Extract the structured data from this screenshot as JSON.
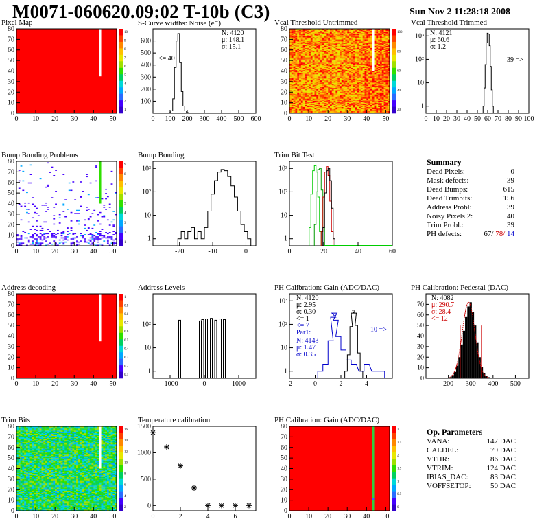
{
  "header": {
    "title": "M0071-060620.09:02 T-10b (C3)",
    "date": "Sun Nov  2 11:28:18 2008"
  },
  "panels": {
    "pixel_map": "Pixel Map",
    "scurve": "S-Curve widths: Noise (e⁻)",
    "vcal_untrimmed": "Vcal Threshold Untrimmed",
    "vcal_trimmed": "Vcal Threshold Trimmed",
    "bump_problems": "Bump Bonding Problems",
    "bump_bonding": "Bump Bonding",
    "trim_bit_test": "Trim Bit Test",
    "address_decoding": "Address decoding",
    "address_levels": "Address Levels",
    "ph_gain": "PH Calibration: Gain (ADC/DAC)",
    "ph_pedestal": "PH Calibration: Pedestal (DAC)",
    "trim_bits": "Trim Bits",
    "temperature": "Temperature calibration",
    "ph_gain_map": "PH Calibration: Gain (ADC/DAC)"
  },
  "colors": {
    "red": "#ff0000",
    "blue_stats": "#0000cc",
    "green_curve": "#00cc00",
    "red_curve": "#cc0000"
  },
  "chart_data": [
    {
      "id": "pixel_map",
      "type": "heatmap",
      "title": "Pixel Map",
      "xlim": [
        0,
        52
      ],
      "ylim": [
        0,
        80
      ],
      "xticks": [
        "0",
        "10",
        "20",
        "30",
        "40",
        "50"
      ],
      "yticks": [
        "0",
        "10",
        "20",
        "30",
        "40",
        "50",
        "60",
        "70",
        "80"
      ],
      "palette_ticks": [
        "10",
        "9",
        "8",
        "7",
        "6",
        "5",
        "4",
        "3",
        "2",
        "1"
      ],
      "fill": "#ff0000",
      "dead_column": {
        "x": 43,
        "y_from": 35,
        "y_to": 80
      }
    },
    {
      "id": "scurve",
      "type": "bar",
      "title": "S-Curve widths: Noise (e⁻)",
      "xlim": [
        0,
        600
      ],
      "ylim": [
        0,
        700
      ],
      "xticks": [
        "0",
        "100",
        "200",
        "300",
        "400",
        "500",
        "600"
      ],
      "yticks": [
        "100",
        "200",
        "300",
        "400",
        "500",
        "600"
      ],
      "stats": {
        "n": "N: 4120",
        "mean": "μ: 148.1",
        "sigma": "σ: 15.1"
      },
      "underflow": "<= 40",
      "x": [
        100,
        110,
        120,
        130,
        140,
        150,
        160,
        170,
        180,
        190,
        200,
        210
      ],
      "values": [
        5,
        20,
        120,
        380,
        600,
        660,
        420,
        180,
        60,
        20,
        6,
        2
      ]
    },
    {
      "id": "vcal_untrimmed",
      "type": "heatmap",
      "title": "Vcal Threshold Untrimmed",
      "xlim": [
        0,
        52
      ],
      "ylim": [
        0,
        80
      ],
      "xticks": [
        "0",
        "10",
        "20",
        "30",
        "40",
        "50"
      ],
      "yticks": [
        "0",
        "10",
        "20",
        "30",
        "40",
        "50",
        "60",
        "70",
        "80"
      ],
      "palette_ticks": [
        "100",
        "80",
        "60",
        "40",
        "20"
      ],
      "dead_column": {
        "x": 43,
        "y_from": 40,
        "y_to": 80
      }
    },
    {
      "id": "vcal_trimmed",
      "type": "bar",
      "title": "Vcal Threshold Trimmed",
      "xlim": [
        0,
        100
      ],
      "ylim": [
        0.5,
        2000
      ],
      "yscale": "log",
      "xticks": [
        "0",
        "10",
        "20",
        "30",
        "40",
        "50",
        "60",
        "70",
        "80",
        "90",
        "100"
      ],
      "yticks": [
        "1",
        "10",
        "10²",
        "10³"
      ],
      "stats": {
        "n": "N: 4121",
        "mean": "μ: 60.6",
        "sigma": "σ:  1.2"
      },
      "overflow": "39 =>",
      "x": [
        56,
        57,
        58,
        59,
        60,
        61,
        62,
        63,
        64,
        65
      ],
      "values": [
        1,
        6,
        60,
        500,
        1300,
        1200,
        380,
        50,
        5,
        1
      ]
    },
    {
      "id": "bump_problems",
      "type": "heatmap",
      "title": "Bump Bonding Problems",
      "xlim": [
        0,
        52
      ],
      "ylim": [
        0,
        80
      ],
      "xticks": [
        "0",
        "10",
        "20",
        "30",
        "40",
        "50"
      ],
      "yticks": [
        "0",
        "10",
        "20",
        "30",
        "40",
        "50",
        "60",
        "70",
        "80"
      ],
      "palette_ticks": [
        "9",
        "8",
        "7",
        "6",
        "5",
        "4",
        "3",
        "2",
        "1"
      ],
      "dead_column": {
        "x": 43,
        "y_from": 40,
        "y_to": 80
      }
    },
    {
      "id": "bump_bonding",
      "type": "bar",
      "title": "Bump Bonding",
      "xlim": [
        -28,
        3
      ],
      "ylim": [
        0.5,
        2000
      ],
      "yscale": "log",
      "xticks": [
        "-20",
        "-10",
        "0"
      ],
      "yticks": [
        "1",
        "10",
        "10²",
        "10³"
      ],
      "x": [
        -20,
        -19,
        -18,
        -17,
        -16,
        -15,
        -14,
        -13,
        -12,
        -11,
        -10,
        -9,
        -8,
        -7,
        -6,
        -5,
        -4,
        -3,
        -2,
        -1,
        0,
        1
      ],
      "values": [
        1,
        2,
        1,
        2,
        3,
        1,
        2,
        1,
        3,
        15,
        80,
        300,
        700,
        900,
        800,
        450,
        180,
        60,
        15,
        4,
        2,
        1
      ]
    },
    {
      "id": "trim_bit_test",
      "type": "line",
      "title": "Trim Bit Test",
      "xlim": [
        0,
        60
      ],
      "ylim": [
        0.5,
        2000
      ],
      "yscale": "log",
      "xticks": [
        "0",
        "20",
        "40",
        "60"
      ],
      "yticks": [
        "1",
        "10",
        "10²",
        "10³"
      ],
      "series": [
        {
          "x": [
            12,
            13,
            14,
            15,
            16,
            17,
            18
          ],
          "values": [
            3,
            80,
            800,
            1300,
            700,
            60,
            2
          ],
          "color": "#00cc00"
        },
        {
          "x": [
            15,
            16,
            17,
            18,
            19,
            20
          ],
          "values": [
            4,
            100,
            900,
            1000,
            120,
            3
          ],
          "color": "#009900"
        },
        {
          "x": [
            19,
            20,
            21,
            22,
            23,
            24,
            25
          ],
          "values": [
            2,
            60,
            700,
            1200,
            500,
            40,
            2
          ],
          "color": "#cc0000"
        },
        {
          "x": [
            20,
            21,
            22,
            23,
            24,
            25,
            26
          ],
          "values": [
            3,
            90,
            800,
            1000,
            300,
            20,
            1
          ],
          "color": "#000000"
        }
      ]
    },
    {
      "id": "address_decoding",
      "type": "heatmap",
      "title": "Address decoding",
      "xlim": [
        0,
        52
      ],
      "ylim": [
        0,
        80
      ],
      "xticks": [
        "0",
        "10",
        "20",
        "30",
        "40",
        "50"
      ],
      "yticks": [
        "0",
        "10",
        "20",
        "30",
        "40",
        "50",
        "60",
        "70",
        "80"
      ],
      "palette_ticks": [
        "1",
        "0.9",
        "0.8",
        "0.7",
        "0.6",
        "0.5",
        "0.4",
        "0.3",
        "0.2",
        "0.1"
      ],
      "dead_column": {
        "x": 43,
        "y_from": 35,
        "y_to": 80
      }
    },
    {
      "id": "address_levels",
      "type": "bar",
      "title": "Address Levels",
      "xlim": [
        -1500,
        1500
      ],
      "ylim": [
        0.5,
        2000
      ],
      "yscale": "log",
      "xticks": [
        "-1000",
        "0",
        "1000"
      ],
      "yticks": [
        "1",
        "10",
        "10²"
      ],
      "x": [
        -720,
        -120,
        -50,
        60,
        200,
        330,
        460,
        580
      ],
      "values": [
        150,
        140,
        160,
        170,
        180,
        150,
        170,
        160
      ]
    },
    {
      "id": "ph_gain",
      "type": "line",
      "title": "PH Calibration: Gain (ADC/DAC)",
      "xlim": [
        -2,
        6
      ],
      "ylim": [
        0.5,
        2000
      ],
      "yscale": "log",
      "xticks": [
        "-2",
        "0",
        "2",
        "4"
      ],
      "yticks": [
        "1",
        "10",
        "10²",
        "10³"
      ],
      "stats": {
        "n": "N: 4120",
        "mean": "μ: 2.95",
        "sigma": "σ: 0.30"
      },
      "underflow": "<= 1",
      "overflow_blue": "10 =>",
      "underflow_blue": "<= 7",
      "blue_stats": {
        "label": "Par1:",
        "n": "N: 4143",
        "mean": "μ: 1.47",
        "sigma": "σ: 0.35"
      },
      "series": [
        {
          "name": "",
          "x": [
            2.4,
            2.6,
            2.8,
            2.9,
            3.0,
            3.1,
            3.2,
            3.4,
            3.6
          ],
          "values": [
            1,
            5,
            80,
            300,
            400,
            300,
            90,
            6,
            1
          ],
          "color": "#000000"
        },
        {
          "name": "",
          "x": [
            0.4,
            0.8,
            1.2,
            1.4,
            1.5,
            1.6,
            1.8,
            2.2,
            2.6,
            3.0,
            3.6,
            4.0,
            4.6,
            5.2
          ],
          "values": [
            1,
            2,
            20,
            200,
            300,
            150,
            30,
            8,
            3,
            2,
            1,
            2,
            1,
            1
          ],
          "color": "#0000cc"
        }
      ]
    },
    {
      "id": "ph_pedestal",
      "type": "bar",
      "title": "PH Calibration: Pedestal (DAC)",
      "xlim": [
        100,
        560
      ],
      "ylim": [
        0,
        80
      ],
      "xticks": [
        "200",
        "300",
        "400",
        "500"
      ],
      "yticks": [
        "0",
        "10",
        "20",
        "30",
        "40",
        "50",
        "60",
        "70"
      ],
      "stats": {
        "n": "N: 4082"
      },
      "red_stats": {
        "mean": "μ: 290.7",
        "sigma": "σ: 28.4",
        "underflow": "<= 12"
      },
      "x": [
        210,
        220,
        230,
        240,
        250,
        260,
        270,
        280,
        290,
        300,
        310,
        320,
        330,
        340,
        350,
        360,
        370,
        380
      ],
      "values": [
        1,
        3,
        6,
        12,
        20,
        32,
        45,
        58,
        68,
        72,
        63,
        50,
        34,
        20,
        11,
        5,
        2,
        1
      ]
    },
    {
      "id": "trim_bits",
      "type": "heatmap",
      "title": "Trim Bits",
      "xlim": [
        0,
        52
      ],
      "ylim": [
        0,
        80
      ],
      "xticks": [
        "0",
        "10",
        "20",
        "30",
        "40",
        "50"
      ],
      "yticks": [
        "0",
        "10",
        "20",
        "30",
        "40",
        "50",
        "60",
        "70",
        "80"
      ],
      "palette_ticks": [
        "16",
        "14",
        "12",
        "10",
        "8",
        "6",
        "4",
        "2"
      ],
      "dead_column": {
        "x": 43,
        "y_from": 40,
        "y_to": 80
      }
    },
    {
      "id": "temperature",
      "type": "scatter",
      "title": "Temperature calibration",
      "xlim": [
        0,
        7.5
      ],
      "ylim": [
        -100,
        1500
      ],
      "xticks": [
        "0",
        "2",
        "4",
        "6"
      ],
      "yticks": [
        "0",
        "500",
        "1000",
        "1500"
      ],
      "x": [
        0,
        1,
        2,
        3,
        4,
        5,
        6,
        7
      ],
      "values": [
        1380,
        1110,
        750,
        330,
        0,
        0,
        0,
        0
      ]
    },
    {
      "id": "ph_gain_map",
      "type": "heatmap",
      "title": "PH Calibration: Gain (ADC/DAC)",
      "xlim": [
        0,
        52
      ],
      "ylim": [
        0,
        80
      ],
      "xticks": [
        "0",
        "10",
        "20",
        "30",
        "40",
        "50"
      ],
      "yticks": [
        "0",
        "10",
        "20",
        "30",
        "40",
        "50",
        "60",
        "70",
        "80"
      ],
      "palette_ticks": [
        "3",
        "2.5",
        "2",
        "1.5",
        "1",
        "0.5",
        "0"
      ],
      "dead_column": {
        "x": 43,
        "y_from": 0,
        "y_to": 80
      }
    }
  ],
  "summary": {
    "title": "Summary",
    "rows": [
      {
        "label": "Dead Pixels:",
        "value": "0"
      },
      {
        "label": "Mask defects:",
        "value": "39"
      },
      {
        "label": "Dead Bumps:",
        "value": "615"
      },
      {
        "label": "Dead Trimbits:",
        "value": "156"
      },
      {
        "label": "Address Probl:",
        "value": "39"
      },
      {
        "label": "Noisy Pixels 2:",
        "value": "40"
      },
      {
        "label": "Trim Probl.:",
        "value": "39"
      }
    ],
    "ph_label": "PH defects:",
    "ph_v1": "67/",
    "ph_v2": "78/",
    "ph_v3": "14"
  },
  "op_params": {
    "title": "Op. Parameters",
    "rows": [
      {
        "label": "VANA:",
        "value": "147 DAC"
      },
      {
        "label": "CALDEL:",
        "value": "79 DAC"
      },
      {
        "label": "VTHR:",
        "value": "86 DAC"
      },
      {
        "label": "VTRIM:",
        "value": "124 DAC"
      },
      {
        "label": "IBIAS_DAC:",
        "value": "83 DAC"
      },
      {
        "label": "VOFFSETOP:",
        "value": "50 DAC"
      }
    ]
  }
}
